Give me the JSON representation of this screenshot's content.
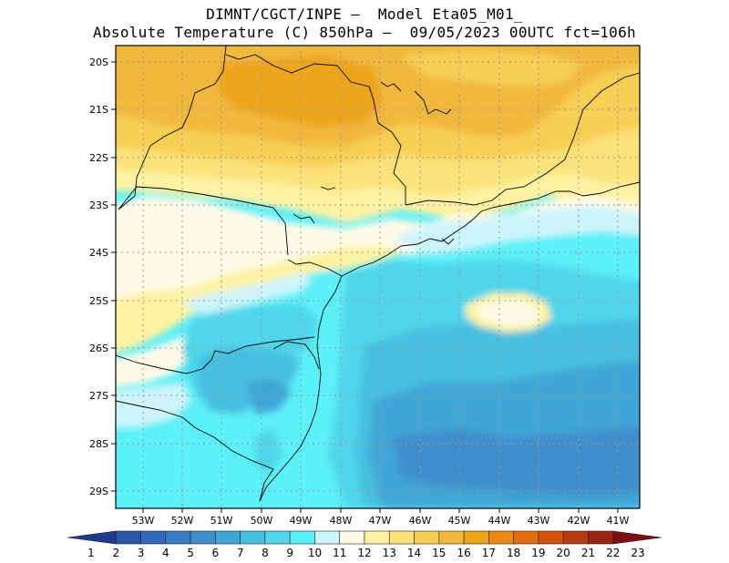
{
  "header": {
    "line1": "DIMNT/CGCT/INPE –  Model Eta05_M01_",
    "line2": "Absolute Temperature (C) 850hPa –  09/05/2023 00UTC fct=106h"
  },
  "map": {
    "lat_labels": [
      "20S",
      "21S",
      "22S",
      "23S",
      "24S",
      "25S",
      "26S",
      "27S",
      "28S",
      "29S"
    ],
    "lon_labels": [
      "53W",
      "52W",
      "51W",
      "50W",
      "49W",
      "48W",
      "47W",
      "46W",
      "45W",
      "44W",
      "43W",
      "42W",
      "41W"
    ],
    "lon_range": [
      -53.7,
      -40.55
    ],
    "lat_range": [
      -29.4,
      -19.7
    ],
    "grid": "dotted",
    "coastline": true,
    "state_borders": true
  },
  "colorbar": {
    "labels": [
      "1",
      "2",
      "3",
      "4",
      "5",
      "6",
      "7",
      "8",
      "9",
      "10",
      "11",
      "12",
      "13",
      "14",
      "15",
      "16",
      "17",
      "18",
      "19",
      "20",
      "21",
      "22",
      "23"
    ],
    "colors": [
      "#1e3c8c",
      "#2a56a8",
      "#3369b8",
      "#3a7dc2",
      "#3f8fcc",
      "#41a6d6",
      "#47bfe0",
      "#4fd6ea",
      "#5cf0f8",
      "#cdf4fb",
      "#fffae8",
      "#fff2a2",
      "#fbe27a",
      "#f7cf55",
      "#f2b83c",
      "#eda51a",
      "#e98a12",
      "#e16e0c",
      "#d4520c",
      "#b83a12",
      "#9a2210",
      "#7e0e14"
    ]
  }
}
